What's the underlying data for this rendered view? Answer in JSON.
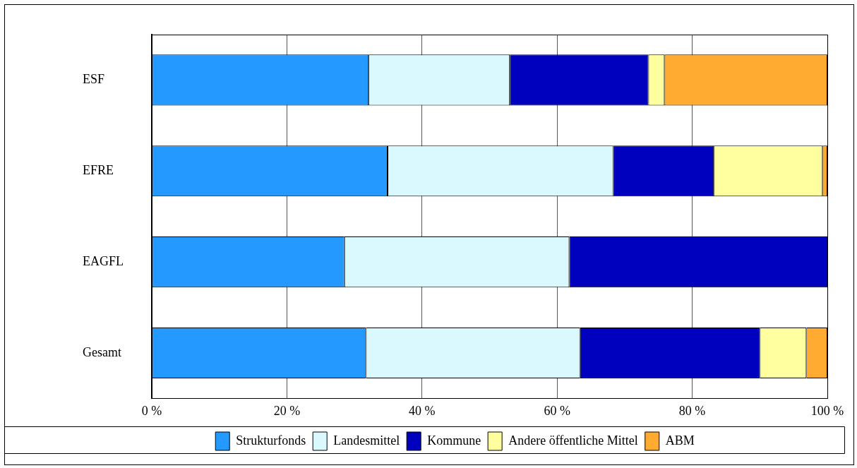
{
  "chart_data": {
    "type": "bar",
    "orientation": "horizontal",
    "stacked": true,
    "categories": [
      "ESF",
      "EFRE",
      "EAGFL",
      "Gesamt"
    ],
    "series": [
      {
        "name": "Strukturfonds",
        "color": "#2499ff",
        "values": [
          32.1,
          34.9,
          28.5,
          31.7
        ]
      },
      {
        "name": "Landesmittel",
        "color": "#d9f9ff",
        "values": [
          20.9,
          33.4,
          33.3,
          31.7
        ]
      },
      {
        "name": "Kommune",
        "color": "#0000bf",
        "values": [
          20.5,
          14.9,
          38.2,
          26.6
        ]
      },
      {
        "name": "Andere öffentliche Mittel",
        "color": "#ffff9f",
        "values": [
          2.4,
          16.1,
          0,
          6.9
        ]
      },
      {
        "name": "ABM",
        "color": "#ffaa30",
        "values": [
          24.1,
          0.7,
          0,
          3.1
        ]
      }
    ],
    "xlim": [
      0,
      100
    ],
    "xticks": [
      {
        "value": 0,
        "label": "0 %"
      },
      {
        "value": 20,
        "label": "20 %"
      },
      {
        "value": 40,
        "label": "40 %"
      },
      {
        "value": 60,
        "label": "60 %"
      },
      {
        "value": 80,
        "label": "80 %"
      },
      {
        "value": 100,
        "label": "100 %"
      }
    ],
    "grid": "x",
    "legend": "bottom"
  }
}
